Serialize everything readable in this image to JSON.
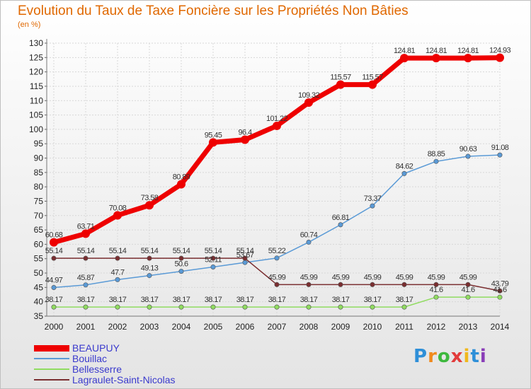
{
  "title": "Evolution du Taux de Taxe Foncière sur les Propriétés Non Bâties",
  "unit": "(en %)",
  "logo": {
    "letters": [
      "P",
      "r",
      "o",
      "x",
      "i",
      "t",
      "i"
    ],
    "colors": [
      "#2e8fd8",
      "#f08a1c",
      "#3db83d",
      "#e23b3b",
      "#f0b81c",
      "#2e8fd8",
      "#8a3db8"
    ]
  },
  "chart_data": {
    "type": "line",
    "title": "Evolution du Taux de Taxe Foncière sur les Propriétés Non Bâties",
    "ylabel": "(en %)",
    "x": [
      "2000",
      "2001",
      "2002",
      "2003",
      "2004",
      "2005",
      "2006",
      "2007",
      "2008",
      "2009",
      "2010",
      "2011",
      "2012",
      "2013",
      "2014"
    ],
    "ylim": [
      35,
      130
    ],
    "yticks": [
      35,
      40,
      45,
      50,
      55,
      60,
      65,
      70,
      75,
      80,
      85,
      90,
      95,
      100,
      105,
      110,
      115,
      120,
      125,
      130
    ],
    "grid": true,
    "legend_position": "bottom-left",
    "series": [
      {
        "name": "BEAUPUY",
        "color": "#ee0000",
        "values": [
          60.68,
          63.71,
          70.08,
          73.58,
          80.89,
          95.45,
          96.4,
          101.22,
          109.32,
          115.57,
          115.57,
          124.81,
          124.81,
          124.81,
          124.93
        ],
        "labels": [
          "60.68",
          "63.71",
          "70.08",
          "73.58",
          "80.89",
          "95.45",
          "96.4",
          "101.22",
          "109.32",
          "115.57",
          "115.57",
          "124.81",
          "124.81",
          "124.81",
          "124.93"
        ]
      },
      {
        "name": "Bouillac",
        "color": "#5a9ad6",
        "values": [
          44.97,
          45.87,
          47.7,
          49.13,
          50.6,
          52.11,
          53.67,
          55.22,
          60.74,
          66.81,
          73.37,
          84.62,
          88.85,
          90.63,
          91.08
        ],
        "labels": [
          "44.97",
          "45.87",
          "47.7",
          "49.13",
          "50.6",
          "52.11",
          "53.67",
          "55.22",
          "60.74",
          "66.81",
          "73.37",
          "84.62",
          "88.85",
          "90.63",
          "91.08"
        ]
      },
      {
        "name": "Bellesserre",
        "color": "#90dc60",
        "values": [
          38.17,
          38.17,
          38.17,
          38.17,
          38.17,
          38.17,
          38.17,
          38.17,
          38.17,
          38.17,
          38.17,
          38.17,
          41.6,
          41.6,
          41.6
        ],
        "labels": [
          "38.17",
          "38.17",
          "38.17",
          "38.17",
          "38.17",
          "38.17",
          "38.17",
          "38.17",
          "38.17",
          "38.17",
          "38.17",
          "38.17",
          "41.6",
          "41.6",
          "41.6"
        ]
      },
      {
        "name": "Lagraulet-Saint-Nicolas",
        "color": "#7a2e30",
        "values": [
          55.14,
          55.14,
          55.14,
          55.14,
          55.14,
          55.14,
          55.14,
          45.99,
          45.99,
          45.99,
          45.99,
          45.99,
          45.99,
          45.99,
          43.79
        ],
        "labels": [
          "55.14",
          "55.14",
          "55.14",
          "55.14",
          "55.14",
          "55.14",
          "55.14",
          "45.99",
          "45.99",
          "45.99",
          "45.99",
          "45.99",
          "45.99",
          "45.99",
          "43.79"
        ]
      }
    ]
  }
}
